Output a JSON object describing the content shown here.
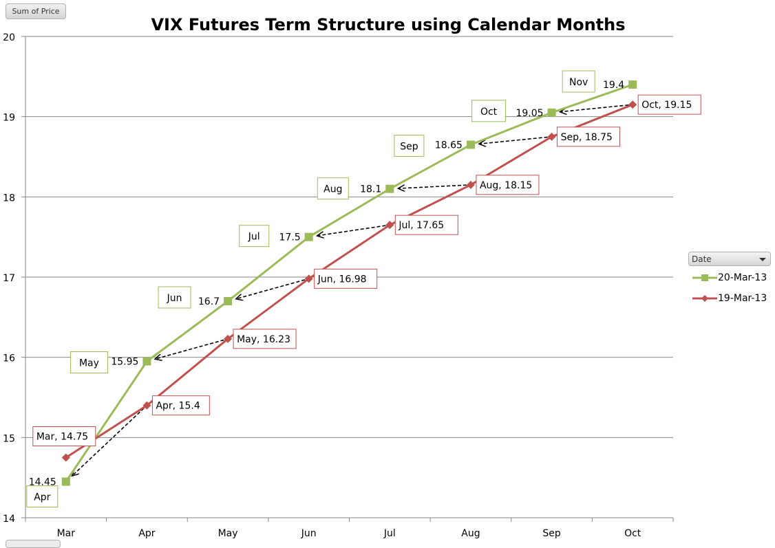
{
  "pivot": {
    "value_field": "Sum of Price"
  },
  "legend": {
    "field_label": "Date",
    "icon": "dropdown-arrow"
  },
  "chart_data": {
    "type": "line",
    "title": "VIX Futures Term Structure using Calendar Months",
    "categories": [
      "Mar",
      "Apr",
      "May",
      "Jun",
      "Jul",
      "Aug",
      "Sep",
      "Oct"
    ],
    "ylim": [
      14,
      20
    ],
    "yticks": [
      "14",
      "15",
      "16",
      "17",
      "18",
      "19",
      "20"
    ],
    "grid": true,
    "legend_position": "right",
    "series": [
      {
        "name": "20-Mar-13",
        "color": "#9bbb59",
        "marker": "square",
        "values": [
          14.45,
          15.95,
          16.7,
          17.5,
          18.1,
          18.65,
          19.05,
          19.4
        ],
        "value_labels": [
          "14.45",
          "15.95",
          "16.7",
          "17.5",
          "18.1",
          "18.65",
          "19.05",
          "19.4"
        ],
        "month_labels": [
          "Apr",
          "May",
          "Jun",
          "Jul",
          "Aug",
          "Sep",
          "Oct",
          "Nov"
        ]
      },
      {
        "name": "19-Mar-13",
        "color": "#c0504d",
        "marker": "diamond",
        "values": [
          14.75,
          15.4,
          16.23,
          16.98,
          17.65,
          18.15,
          18.75,
          19.15
        ],
        "point_labels": [
          "Mar, 14.75",
          "Apr, 15.4",
          "May, 16.23",
          "Jun, 16.98",
          "Jul, 17.65",
          "Aug, 18.15",
          "Sep, 18.75",
          "Oct, 19.15"
        ]
      }
    ],
    "annotations": "dashed arrows from each 19-Mar-13 point to the previous category's 20-Mar-13 point"
  }
}
